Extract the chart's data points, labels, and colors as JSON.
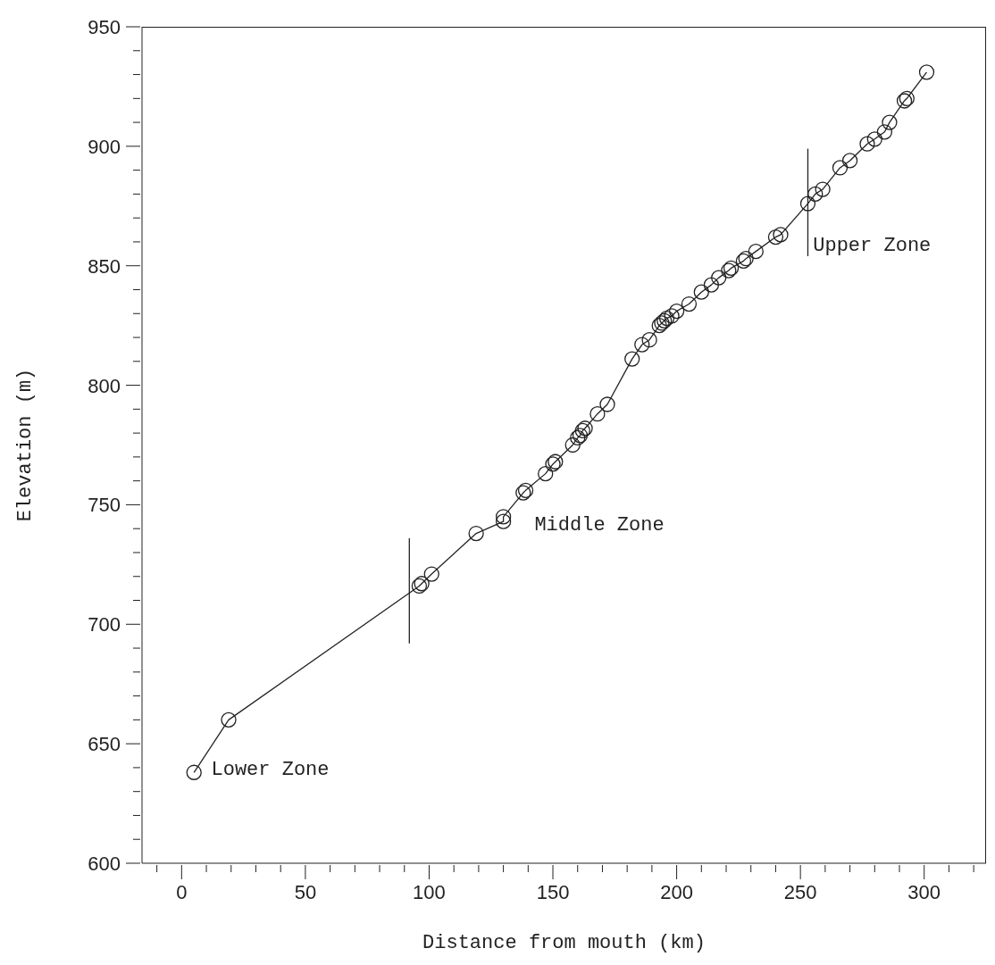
{
  "chart_data": {
    "type": "line",
    "xlabel": "Distance from mouth (km)",
    "ylabel": "Elevation (m)",
    "xlim": [
      -16,
      325
    ],
    "ylim": [
      600,
      950
    ],
    "xticks": [
      {
        "value": -10,
        "label": null
      },
      0,
      {
        "value": 10,
        "label": null
      },
      {
        "value": 20,
        "label": null
      },
      {
        "value": 30,
        "label": null
      },
      {
        "value": 40,
        "label": null
      },
      50,
      {
        "value": 60,
        "label": null
      },
      {
        "value": 70,
        "label": null
      },
      {
        "value": 80,
        "label": null
      },
      {
        "value": 90,
        "label": null
      },
      100,
      {
        "value": 110,
        "label": null
      },
      {
        "value": 120,
        "label": null
      },
      {
        "value": 130,
        "label": null
      },
      {
        "value": 140,
        "label": null
      },
      150,
      {
        "value": 160,
        "label": null
      },
      {
        "value": 170,
        "label": null
      },
      {
        "value": 180,
        "label": null
      },
      {
        "value": 190,
        "label": null
      },
      200,
      {
        "value": 210,
        "label": null
      },
      {
        "value": 220,
        "label": null
      },
      {
        "value": 230,
        "label": null
      },
      {
        "value": 240,
        "label": null
      },
      250,
      {
        "value": 260,
        "label": null
      },
      {
        "value": 270,
        "label": null
      },
      {
        "value": 280,
        "label": null
      },
      {
        "value": 290,
        "label": null
      },
      300,
      {
        "value": 310,
        "label": null
      },
      {
        "value": 320,
        "label": null
      }
    ],
    "yticks": [
      600,
      {
        "value": 610,
        "label": null
      },
      {
        "value": 620,
        "label": null
      },
      {
        "value": 630,
        "label": null
      },
      {
        "value": 640,
        "label": null
      },
      650,
      {
        "value": 660,
        "label": null
      },
      {
        "value": 670,
        "label": null
      },
      {
        "value": 680,
        "label": null
      },
      {
        "value": 690,
        "label": null
      },
      700,
      {
        "value": 710,
        "label": null
      },
      {
        "value": 720,
        "label": null
      },
      {
        "value": 730,
        "label": null
      },
      {
        "value": 740,
        "label": null
      },
      750,
      {
        "value": 760,
        "label": null
      },
      {
        "value": 770,
        "label": null
      },
      {
        "value": 780,
        "label": null
      },
      {
        "value": 790,
        "label": null
      },
      800,
      {
        "value": 810,
        "label": null
      },
      {
        "value": 820,
        "label": null
      },
      {
        "value": 830,
        "label": null
      },
      {
        "value": 840,
        "label": null
      },
      850,
      {
        "value": 860,
        "label": null
      },
      {
        "value": 870,
        "label": null
      },
      {
        "value": 880,
        "label": null
      },
      {
        "value": 890,
        "label": null
      },
      900,
      {
        "value": 910,
        "label": null
      },
      {
        "value": 920,
        "label": null
      },
      {
        "value": 930,
        "label": null
      },
      {
        "value": 940,
        "label": null
      },
      950
    ],
    "series": [
      {
        "color": "#222222",
        "marker": "circle",
        "x": [
          5,
          19,
          96,
          97,
          101,
          119,
          130,
          130,
          138,
          139,
          147,
          150,
          151,
          158,
          160,
          161,
          162,
          163,
          168,
          172,
          182,
          186,
          189,
          193,
          194,
          195,
          196,
          198,
          200,
          205,
          210,
          214,
          217,
          221,
          222,
          227,
          228,
          232,
          240,
          242,
          253,
          256,
          259,
          266,
          270,
          277,
          280,
          284,
          286,
          292,
          293,
          301
        ],
        "values": [
          638,
          660,
          716,
          717,
          721,
          738,
          743,
          745,
          755,
          756,
          763,
          767,
          768,
          775,
          778,
          779,
          781,
          782,
          788,
          792,
          811,
          817,
          819,
          825,
          826,
          827,
          828,
          829,
          831,
          834,
          839,
          842,
          845,
          848,
          849,
          852,
          853,
          856,
          862,
          863,
          876,
          880,
          882,
          891,
          894,
          901,
          903,
          906,
          910,
          919,
          920,
          931
        ]
      },
      {
        "color": "#222222",
        "marker": "none",
        "x": [
          92,
          92
        ],
        "values": [
          692,
          736
        ]
      },
      {
        "color": "#222222",
        "marker": "none",
        "x": [
          253,
          253
        ],
        "values": [
          854,
          899
        ]
      }
    ],
    "annotations": [
      "Lower Zone",
      "Middle Zone",
      "Upper Zone"
    ]
  }
}
